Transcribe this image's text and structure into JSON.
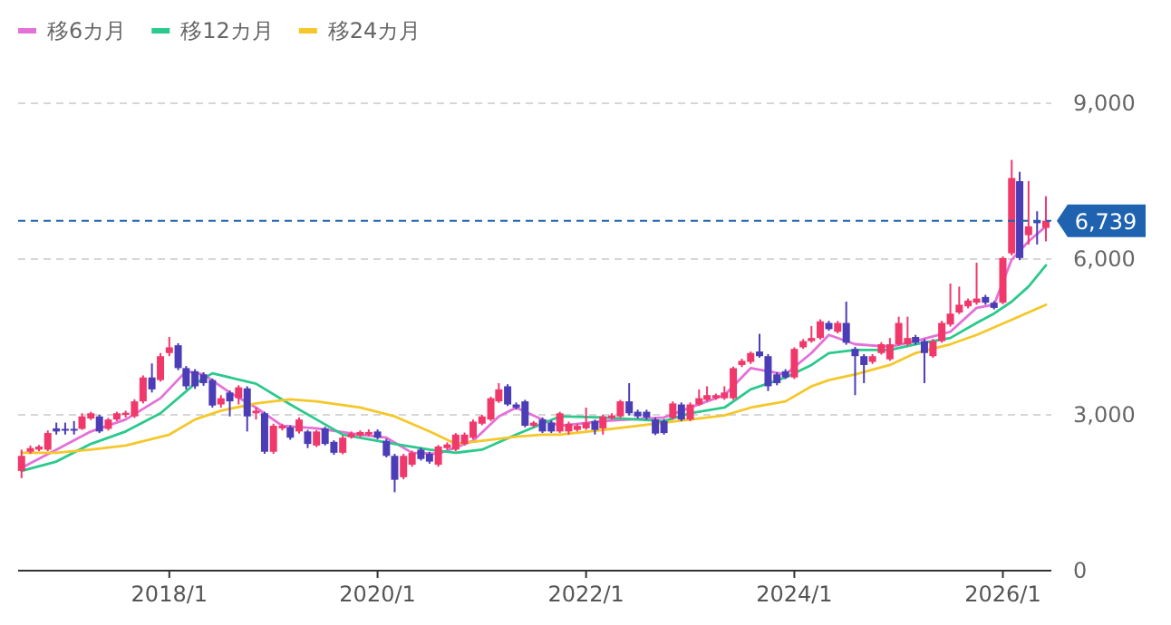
{
  "chart_data": {
    "type": "candlestick",
    "x": [
      "2016-08",
      "2016-09",
      "2016-10",
      "2016-11",
      "2016-12",
      "2017-01",
      "2017-02",
      "2017-03",
      "2017-04",
      "2017-05",
      "2017-06",
      "2017-07",
      "2017-08",
      "2017-09",
      "2017-10",
      "2017-11",
      "2017-12",
      "2018-01",
      "2018-02",
      "2018-03",
      "2018-04",
      "2018-05",
      "2018-06",
      "2018-07",
      "2018-08",
      "2018-09",
      "2018-10",
      "2018-11",
      "2018-12",
      "2019-01",
      "2019-02",
      "2019-03",
      "2019-04",
      "2019-05",
      "2019-06",
      "2019-07",
      "2019-08",
      "2019-09",
      "2019-10",
      "2019-11",
      "2019-12",
      "2020-01",
      "2020-02",
      "2020-03",
      "2020-04",
      "2020-05",
      "2020-06",
      "2020-07",
      "2020-08",
      "2020-09",
      "2020-10",
      "2020-11",
      "2020-12",
      "2021-01",
      "2021-02",
      "2021-03",
      "2021-04",
      "2021-05",
      "2021-06",
      "2021-07",
      "2021-08",
      "2021-09",
      "2021-10",
      "2021-11",
      "2021-12",
      "2022-01",
      "2022-02",
      "2022-03",
      "2022-04",
      "2022-05",
      "2022-06",
      "2022-07",
      "2022-08",
      "2022-09",
      "2022-10",
      "2022-11",
      "2022-12",
      "2023-01",
      "2023-02",
      "2023-03",
      "2023-04",
      "2023-05",
      "2023-06",
      "2023-07",
      "2023-08",
      "2023-09",
      "2023-10",
      "2023-11",
      "2023-12",
      "2024-01",
      "2024-02",
      "2024-03",
      "2024-04",
      "2024-05",
      "2024-06",
      "2024-07",
      "2024-08",
      "2024-09",
      "2024-10",
      "2024-11",
      "2024-12",
      "2025-01",
      "2025-02",
      "2025-03",
      "2025-04",
      "2025-05",
      "2025-06",
      "2025-07",
      "2025-08",
      "2025-09",
      "2025-10",
      "2025-11",
      "2025-12",
      "2026-01",
      "2026-02",
      "2026-03",
      "2026-04",
      "2026-05",
      "2026-06"
    ],
    "ohlc": [
      [
        1920,
        2330,
        1780,
        2210
      ],
      [
        2290,
        2410,
        2250,
        2360
      ],
      [
        2330,
        2420,
        2300,
        2390
      ],
      [
        2330,
        2700,
        2300,
        2650
      ],
      [
        2740,
        2850,
        2620,
        2680
      ],
      [
        2730,
        2850,
        2620,
        2700
      ],
      [
        2730,
        2880,
        2620,
        2710
      ],
      [
        2730,
        3030,
        2710,
        2970
      ],
      [
        2930,
        3060,
        2900,
        3030
      ],
      [
        2970,
        3000,
        2650,
        2680
      ],
      [
        2730,
        2940,
        2700,
        2910
      ],
      [
        2910,
        3060,
        2880,
        3030
      ],
      [
        3000,
        3080,
        2950,
        3040
      ],
      [
        2970,
        3300,
        2940,
        3260
      ],
      [
        3260,
        3760,
        3220,
        3720
      ],
      [
        3720,
        3990,
        3430,
        3490
      ],
      [
        3670,
        4190,
        3640,
        4130
      ],
      [
        4190,
        4500,
        4130,
        4300
      ],
      [
        4340,
        4380,
        3860,
        3900
      ],
      [
        3900,
        3940,
        3490,
        3550
      ],
      [
        3840,
        3880,
        3500,
        3550
      ],
      [
        3780,
        3820,
        3560,
        3610
      ],
      [
        3670,
        3700,
        3140,
        3180
      ],
      [
        3200,
        3380,
        3140,
        3320
      ],
      [
        3430,
        3470,
        2970,
        3260
      ],
      [
        3320,
        3570,
        3200,
        3530
      ],
      [
        3510,
        3550,
        2680,
        2970
      ],
      [
        3030,
        3140,
        2910,
        3080
      ],
      [
        3030,
        3060,
        2250,
        2290
      ],
      [
        2290,
        2830,
        2250,
        2790
      ],
      [
        2740,
        2830,
        2700,
        2790
      ],
      [
        2760,
        2800,
        2520,
        2560
      ],
      [
        2680,
        2950,
        2640,
        2910
      ],
      [
        2680,
        2710,
        2360,
        2440
      ],
      [
        2410,
        2710,
        2380,
        2680
      ],
      [
        2740,
        2770,
        2410,
        2440
      ],
      [
        2480,
        2510,
        2230,
        2270
      ],
      [
        2270,
        2600,
        2240,
        2560
      ],
      [
        2570,
        2680,
        2540,
        2640
      ],
      [
        2600,
        2700,
        2570,
        2670
      ],
      [
        2620,
        2720,
        2590,
        2670
      ],
      [
        2680,
        2720,
        2530,
        2560
      ],
      [
        2500,
        2540,
        2180,
        2210
      ],
      [
        2210,
        2250,
        1510,
        1750
      ],
      [
        1800,
        2250,
        1760,
        2210
      ],
      [
        2040,
        2310,
        2000,
        2270
      ],
      [
        2330,
        2370,
        2120,
        2150
      ],
      [
        2250,
        2290,
        2060,
        2100
      ],
      [
        2040,
        2420,
        2000,
        2390
      ],
      [
        2360,
        2470,
        2330,
        2430
      ],
      [
        2330,
        2650,
        2300,
        2620
      ],
      [
        2440,
        2660,
        2410,
        2620
      ],
      [
        2560,
        2910,
        2530,
        2870
      ],
      [
        2830,
        3000,
        2800,
        2970
      ],
      [
        2910,
        3350,
        2880,
        3320
      ],
      [
        3260,
        3610,
        3230,
        3490
      ],
      [
        3550,
        3590,
        3170,
        3200
      ],
      [
        3200,
        3240,
        3100,
        3140
      ],
      [
        3260,
        3290,
        2760,
        2790
      ],
      [
        2790,
        2880,
        2760,
        2850
      ],
      [
        2910,
        2950,
        2650,
        2680
      ],
      [
        2850,
        2890,
        2650,
        2680
      ],
      [
        2680,
        3060,
        2650,
        3030
      ],
      [
        2680,
        2870,
        2620,
        2830
      ],
      [
        2710,
        2830,
        2680,
        2790
      ],
      [
        2740,
        3140,
        2710,
        2850
      ],
      [
        2880,
        2910,
        2620,
        2710
      ],
      [
        2740,
        3000,
        2620,
        2970
      ],
      [
        2940,
        3030,
        2910,
        2990
      ],
      [
        2970,
        3290,
        2940,
        3260
      ],
      [
        3260,
        3610,
        2990,
        3030
      ],
      [
        3060,
        3100,
        2930,
        2970
      ],
      [
        3060,
        3100,
        2910,
        2950
      ],
      [
        2910,
        2950,
        2610,
        2640
      ],
      [
        2880,
        2920,
        2620,
        2650
      ],
      [
        2940,
        3260,
        2910,
        3220
      ],
      [
        3200,
        3240,
        2880,
        2910
      ],
      [
        2910,
        3240,
        2880,
        3200
      ],
      [
        3200,
        3490,
        3170,
        3320
      ],
      [
        3290,
        3550,
        3260,
        3380
      ],
      [
        3320,
        3410,
        3290,
        3380
      ],
      [
        3320,
        3550,
        3290,
        3430
      ],
      [
        3320,
        3930,
        3290,
        3900
      ],
      [
        3960,
        4080,
        3920,
        4040
      ],
      [
        4020,
        4220,
        3980,
        4190
      ],
      [
        4220,
        4560,
        4100,
        4130
      ],
      [
        4130,
        4170,
        3460,
        3550
      ],
      [
        3780,
        3820,
        3570,
        3610
      ],
      [
        3840,
        3880,
        3690,
        3720
      ],
      [
        3720,
        4300,
        3690,
        4270
      ],
      [
        4300,
        4460,
        4270,
        4420
      ],
      [
        4420,
        4710,
        4390,
        4480
      ],
      [
        4480,
        4840,
        4450,
        4800
      ],
      [
        4770,
        4810,
        4620,
        4650
      ],
      [
        4600,
        4810,
        4570,
        4770
      ],
      [
        4770,
        5180,
        4350,
        4390
      ],
      [
        4270,
        4310,
        3380,
        4130
      ],
      [
        4130,
        4170,
        3610,
        3960
      ],
      [
        4020,
        4170,
        3980,
        4130
      ],
      [
        4190,
        4400,
        4160,
        4360
      ],
      [
        4070,
        4480,
        4040,
        4360
      ],
      [
        4360,
        4890,
        4330,
        4770
      ],
      [
        4360,
        4890,
        4330,
        4480
      ],
      [
        4500,
        4540,
        4350,
        4390
      ],
      [
        4420,
        4460,
        3610,
        4190
      ],
      [
        4130,
        4460,
        4100,
        4420
      ],
      [
        4420,
        4810,
        4390,
        4770
      ],
      [
        4740,
        5530,
        4700,
        4950
      ],
      [
        4970,
        5470,
        4940,
        5120
      ],
      [
        5090,
        5240,
        5050,
        5200
      ],
      [
        5160,
        5930,
        5120,
        5240
      ],
      [
        5270,
        5310,
        5120,
        5160
      ],
      [
        5160,
        5190,
        5030,
        5060
      ],
      [
        5160,
        6050,
        5130,
        6020
      ],
      [
        6110,
        7910,
        6070,
        7560
      ],
      [
        7500,
        7680,
        5980,
        6020
      ],
      [
        6460,
        7500,
        6280,
        6630
      ],
      [
        6750,
        6920,
        6280,
        6690
      ],
      [
        6600,
        7210,
        6340,
        6739
      ]
    ],
    "colors": [
      "#f0386b",
      "#f0386b",
      "#f0386b",
      "#f0386b",
      "#4b3db5",
      "#4b3db5",
      "#4b3db5",
      "#f0386b",
      "#f0386b",
      "#4b3db5",
      "#f0386b",
      "#f0386b",
      "#f0386b",
      "#f0386b",
      "#f0386b",
      "#4b3db5",
      "#f0386b",
      "#f0386b",
      "#4b3db5",
      "#4b3db5",
      "#4b3db5",
      "#4b3db5",
      "#4b3db5",
      "#f0386b",
      "#4b3db5",
      "#f0386b",
      "#4b3db5",
      "#f0386b",
      "#4b3db5",
      "#f0386b",
      "#f0386b",
      "#4b3db5",
      "#f0386b",
      "#4b3db5",
      "#f0386b",
      "#4b3db5",
      "#4b3db5",
      "#f0386b",
      "#f0386b",
      "#f0386b",
      "#f0386b",
      "#4b3db5",
      "#4b3db5",
      "#4b3db5",
      "#f0386b",
      "#f0386b",
      "#4b3db5",
      "#4b3db5",
      "#f0386b",
      "#f0386b",
      "#f0386b",
      "#f0386b",
      "#f0386b",
      "#f0386b",
      "#f0386b",
      "#f0386b",
      "#4b3db5",
      "#4b3db5",
      "#4b3db5",
      "#f0386b",
      "#4b3db5",
      "#4b3db5",
      "#f0386b",
      "#f0386b",
      "#f0386b",
      "#f0386b",
      "#4b3db5",
      "#f0386b",
      "#f0386b",
      "#f0386b",
      "#4b3db5",
      "#4b3db5",
      "#4b3db5",
      "#4b3db5",
      "#4b3db5",
      "#f0386b",
      "#4b3db5",
      "#f0386b",
      "#f0386b",
      "#f0386b",
      "#f0386b",
      "#f0386b",
      "#f0386b",
      "#f0386b",
      "#f0386b",
      "#4b3db5",
      "#4b3db5",
      "#4b3db5",
      "#4b3db5",
      "#f0386b",
      "#f0386b",
      "#f0386b",
      "#f0386b",
      "#4b3db5",
      "#f0386b",
      "#4b3db5",
      "#4b3db5",
      "#4b3db5",
      "#f0386b",
      "#f0386b",
      "#f0386b",
      "#f0386b",
      "#f0386b",
      "#4b3db5",
      "#4b3db5",
      "#f0386b",
      "#f0386b",
      "#f0386b",
      "#f0386b",
      "#f0386b",
      "#f0386b",
      "#4b3db5",
      "#4b3db5",
      "#f0386b",
      "#f0386b",
      "#4b3db5",
      "#f0386b",
      "#4b3db5",
      "#f0386b"
    ],
    "series": [
      {
        "name": "移6カ月",
        "type": "line",
        "color": "#e471d8",
        "x": [
          "2016-08",
          "2016-12",
          "2017-04",
          "2017-08",
          "2017-12",
          "2018-03",
          "2018-05",
          "2018-08",
          "2018-11",
          "2019-02",
          "2019-06",
          "2019-11",
          "2020-02",
          "2020-05",
          "2020-08",
          "2020-12",
          "2021-03",
          "2021-05",
          "2021-08",
          "2021-10",
          "2022-03",
          "2022-10",
          "2023-01",
          "2023-05",
          "2023-08",
          "2023-12",
          "2024-03",
          "2024-05",
          "2024-08",
          "2024-12",
          "2025-03",
          "2025-07",
          "2025-10",
          "2025-12",
          "2026-02",
          "2026-04",
          "2026-06"
        ],
        "values": [
          1980,
          2330,
          2680,
          2910,
          3320,
          3840,
          3780,
          3430,
          3140,
          2790,
          2740,
          2620,
          2560,
          2270,
          2250,
          2500,
          2970,
          3140,
          2910,
          2790,
          2880,
          2950,
          3140,
          3380,
          3900,
          3780,
          4190,
          4540,
          4360,
          4310,
          4420,
          4600,
          5060,
          5120,
          5990,
          6340,
          6630
        ]
      },
      {
        "name": "移12カ月",
        "type": "line",
        "color": "#2bc98c",
        "x": [
          "2016-08",
          "2016-12",
          "2017-04",
          "2017-08",
          "2017-12",
          "2018-04",
          "2018-06",
          "2018-11",
          "2019-03",
          "2019-06",
          "2019-09",
          "2020-03",
          "2020-07",
          "2020-10",
          "2021-01",
          "2021-05",
          "2021-08",
          "2021-10",
          "2022-03",
          "2022-10",
          "2023-01",
          "2023-05",
          "2023-08",
          "2023-12",
          "2024-03",
          "2024-05",
          "2024-08",
          "2024-12",
          "2025-03",
          "2025-07",
          "2025-10",
          "2025-12",
          "2026-02",
          "2026-04",
          "2026-06"
        ],
        "values": [
          1920,
          2100,
          2440,
          2680,
          3030,
          3600,
          3800,
          3600,
          3200,
          2910,
          2620,
          2440,
          2330,
          2270,
          2330,
          2620,
          2830,
          2970,
          2950,
          2880,
          3030,
          3140,
          3490,
          3720,
          3960,
          4190,
          4250,
          4250,
          4360,
          4480,
          4770,
          4950,
          5180,
          5470,
          5880
        ]
      },
      {
        "name": "移24カ月",
        "type": "line",
        "color": "#f5c72a",
        "x": [
          "2016-08",
          "2016-12",
          "2017-04",
          "2017-08",
          "2018-01",
          "2018-04",
          "2018-07",
          "2018-11",
          "2019-03",
          "2019-06",
          "2019-11",
          "2020-03",
          "2020-07",
          "2020-10",
          "2021-01",
          "2021-05",
          "2021-08",
          "2021-10",
          "2022-03",
          "2022-10",
          "2023-01",
          "2023-05",
          "2023-08",
          "2023-12",
          "2024-03",
          "2024-05",
          "2024-08",
          "2024-12",
          "2025-03",
          "2025-07",
          "2025-10",
          "2026-02",
          "2026-06"
        ],
        "values": [
          2270,
          2270,
          2330,
          2410,
          2620,
          2910,
          3080,
          3220,
          3300,
          3260,
          3140,
          2970,
          2680,
          2440,
          2500,
          2580,
          2620,
          2620,
          2710,
          2850,
          2910,
          2990,
          3140,
          3260,
          3550,
          3670,
          3780,
          3960,
          4190,
          4360,
          4540,
          4830,
          5120
        ]
      }
    ],
    "xlim": [
      "2016-07-20",
      "2026-06-20"
    ],
    "xticks": [
      {
        "value": "2018-01",
        "label": "2018/1"
      },
      {
        "value": "2020-01",
        "label": "2020/1"
      },
      {
        "value": "2022-01",
        "label": "2022/1"
      },
      {
        "value": "2024-01",
        "label": "2024/1"
      },
      {
        "value": "2026-01",
        "label": "2026/1"
      }
    ],
    "ylim": [
      0,
      9000
    ],
    "yticks": [
      0,
      {
        "value": 3000,
        "label": "3,000"
      },
      {
        "value": 6000,
        "label": "6,000"
      },
      {
        "value": 9000,
        "label": "9,000"
      }
    ],
    "ref_lines": [
      {
        "axis": "y",
        "value": 6739,
        "label": "6,739",
        "color": "#1f63b0",
        "line_style": "dashed"
      }
    ],
    "grid": "y",
    "legend": "top left"
  }
}
